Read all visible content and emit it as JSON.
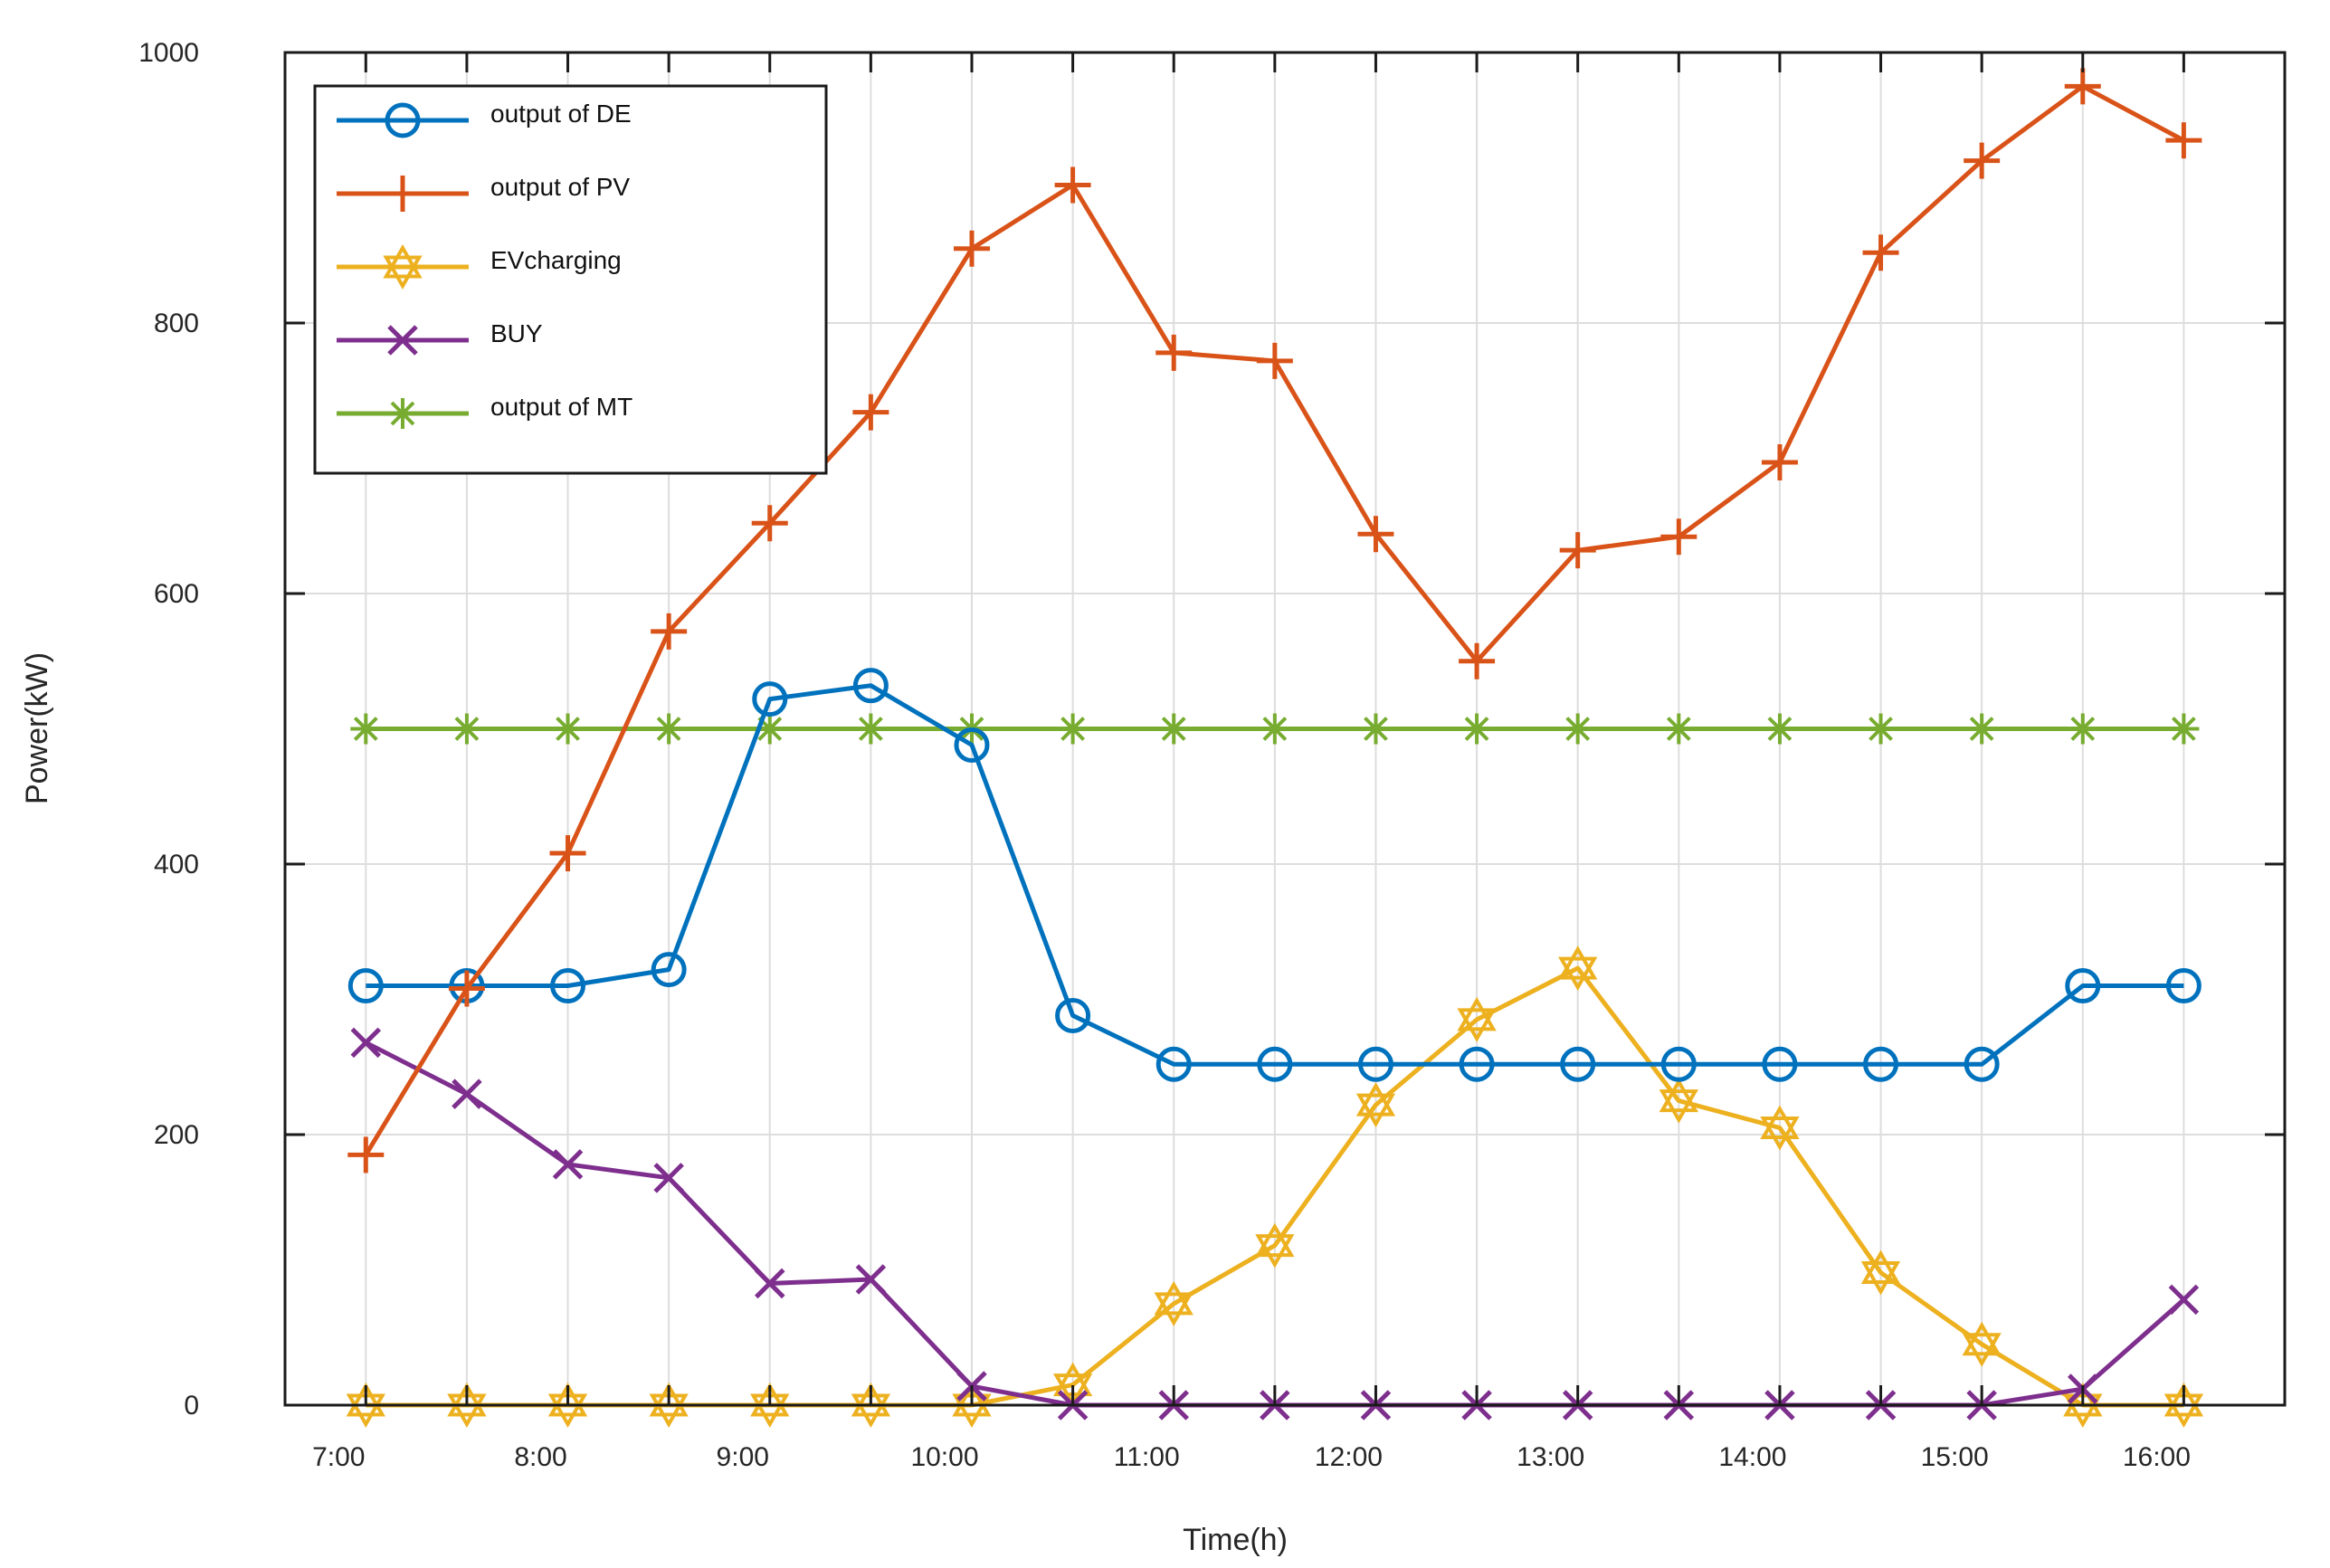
{
  "chart_data": {
    "type": "line",
    "title": "",
    "xlabel": "Time(h)",
    "ylabel": "Power(kW)",
    "ylim": [
      0,
      1000
    ],
    "yticks": [
      0,
      200,
      400,
      600,
      800,
      1000
    ],
    "ytick_labels": [
      "0",
      "200",
      "400",
      "600",
      "800",
      "1000"
    ],
    "xlim": [
      6.6,
      16.5
    ],
    "x_tick_labels": [
      "7:00",
      "8:00",
      "9:00",
      "10:00",
      "11:00",
      "12:00",
      "13:00",
      "14:00",
      "15:00",
      "16:00"
    ],
    "grid": true,
    "legend_position": "top-left",
    "x": [
      7.0,
      7.5,
      8.0,
      8.5,
      9.0,
      9.5,
      10.0,
      10.5,
      11.0,
      11.5,
      12.0,
      12.5,
      13.0,
      13.5,
      14.0,
      14.5,
      15.0,
      15.5,
      16.0
    ],
    "series": [
      {
        "name": "output of DE",
        "color": "#0072BD",
        "marker": "circle",
        "values": [
          310,
          310,
          310,
          322,
          522,
          532,
          488,
          288,
          252,
          252,
          252,
          252,
          252,
          252,
          252,
          252,
          252,
          310,
          310
        ]
      },
      {
        "name": "output of PV",
        "color": "#D95319",
        "marker": "plus",
        "values": [
          185,
          308,
          408,
          572,
          652,
          734,
          855,
          902,
          778,
          772,
          644,
          550,
          632,
          642,
          697,
          852,
          920,
          975,
          935
        ]
      },
      {
        "name": "EVcharging",
        "color": "#EDB120",
        "marker": "hexagram",
        "values": [
          0,
          0,
          0,
          0,
          0,
          0,
          0,
          15,
          75,
          118,
          222,
          285,
          323,
          225,
          205,
          98,
          45,
          0,
          0
        ]
      },
      {
        "name": "BUY",
        "color": "#7E2F8E",
        "marker": "x",
        "values": [
          268,
          230,
          178,
          168,
          90,
          93,
          14,
          0,
          0,
          0,
          0,
          0,
          0,
          0,
          0,
          0,
          0,
          12,
          78
        ]
      },
      {
        "name": "output of MT",
        "color": "#77AC30",
        "marker": "asterisk",
        "values": [
          500,
          500,
          500,
          500,
          500,
          500,
          500,
          500,
          500,
          500,
          500,
          500,
          500,
          500,
          500,
          500,
          500,
          500,
          500
        ]
      }
    ]
  }
}
